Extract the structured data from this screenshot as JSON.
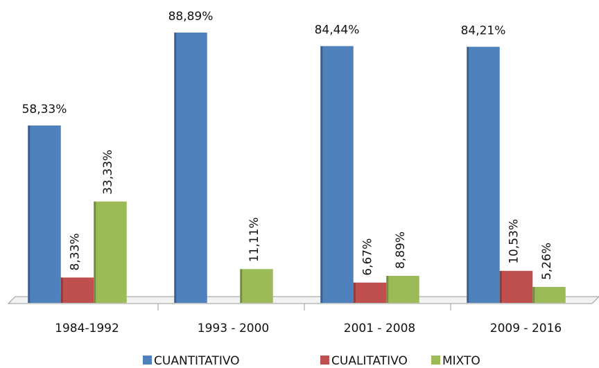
{
  "chart_data": {
    "type": "bar",
    "categories": [
      "1984-1992",
      "1993 - 2000",
      "2001 - 2008",
      "2009 - 2016"
    ],
    "series": [
      {
        "name": "CUANTITATIVO",
        "color": "#4f81bd",
        "values": [
          58.33,
          88.89,
          84.44,
          84.21
        ],
        "value_labels": [
          "58,33%",
          "88,89%",
          "84,44%",
          "84,21%"
        ]
      },
      {
        "name": "CUALITATIVO",
        "color": "#c0504d",
        "values": [
          8.33,
          null,
          6.67,
          10.53
        ],
        "value_labels": [
          "8,33%",
          null,
          "6,67%",
          "10,53%"
        ]
      },
      {
        "name": "MIXTO",
        "color": "#9bbb59",
        "values": [
          33.33,
          11.11,
          8.89,
          5.26
        ],
        "value_labels": [
          "33,33%",
          "11,11%",
          "8,89%",
          "5,26%"
        ]
      }
    ],
    "legend": "bottom"
  }
}
